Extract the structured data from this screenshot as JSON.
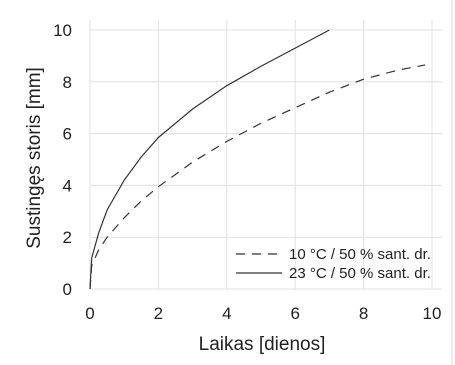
{
  "chart_data": {
    "type": "line",
    "xlabel": "Laikas [dienos]",
    "ylabel": "Sustingęs storis [mm]",
    "xlim": [
      0,
      10
    ],
    "ylim": [
      0,
      10
    ],
    "xticks": [
      "0",
      "2",
      "4",
      "6",
      "8",
      "10"
    ],
    "yticks": [
      "0",
      "2",
      "4",
      "6",
      "8",
      "10"
    ],
    "grid": true,
    "legend_position": "bottom-right",
    "series": [
      {
        "name": "10 °C / 50 % sant. dr.",
        "style": "dashed",
        "x": [
          0,
          0.05,
          0.25,
          0.5,
          1,
          1.5,
          2,
          3,
          4,
          5,
          6,
          7,
          8,
          9,
          9.8
        ],
        "y": [
          0,
          0.9,
          1.5,
          2.0,
          2.75,
          3.4,
          3.95,
          4.9,
          5.7,
          6.4,
          7.0,
          7.6,
          8.1,
          8.45,
          8.65
        ]
      },
      {
        "name": "23 °C / 50 % sant. dr.",
        "style": "solid",
        "x": [
          0,
          0.05,
          0.25,
          0.5,
          1,
          1.5,
          2,
          3,
          4,
          5,
          6,
          7
        ],
        "y": [
          0,
          1.2,
          2.15,
          3.05,
          4.2,
          5.1,
          5.85,
          6.95,
          7.85,
          8.6,
          9.3,
          10.0
        ]
      }
    ]
  }
}
